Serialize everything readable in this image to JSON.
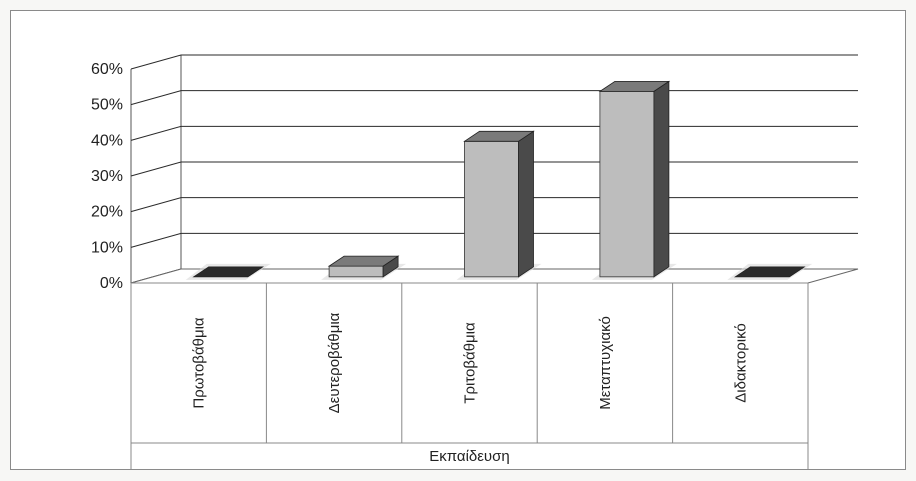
{
  "chart_data": {
    "type": "bar",
    "style": "3d-column",
    "categories": [
      "Πρωτοβάθμια",
      "Δευτεροβάθμια",
      "Τριτοβάθμια",
      "Μεταπτυχιακό",
      "Διδακτορικό"
    ],
    "values": [
      0,
      3,
      38,
      52,
      0
    ],
    "xlabel": "Εκπαίδευση",
    "ylabel": "",
    "ylim": [
      0,
      60
    ],
    "yticks": [
      "0%",
      "10%",
      "20%",
      "30%",
      "40%",
      "50%",
      "60%"
    ],
    "grid": true,
    "legend": "none",
    "colors": {
      "bar_front": "#bdbdbd",
      "bar_top": "#7a7a7a",
      "bar_side": "#4a4a4a",
      "gridline": "#2a2a2a"
    }
  }
}
